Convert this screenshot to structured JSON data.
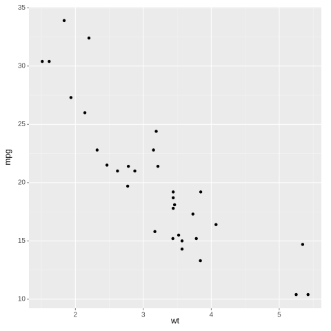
{
  "chart_data": {
    "type": "scatter",
    "x_label": "wt",
    "y_label": "mpg",
    "x": [
      2.62,
      2.875,
      2.32,
      3.215,
      3.44,
      3.46,
      3.57,
      3.19,
      3.15,
      3.44,
      3.44,
      4.07,
      3.73,
      3.78,
      5.25,
      5.424,
      5.345,
      2.2,
      1.615,
      1.835,
      2.465,
      3.52,
      3.435,
      3.84,
      3.845,
      1.935,
      2.14,
      1.513,
      3.17,
      2.77,
      3.57,
      2.78
    ],
    "values": [
      21.0,
      21.0,
      22.8,
      21.4,
      18.7,
      18.1,
      14.3,
      24.4,
      22.8,
      19.2,
      17.8,
      16.4,
      17.3,
      15.2,
      10.4,
      10.4,
      14.7,
      32.4,
      30.4,
      33.9,
      21.5,
      15.5,
      15.2,
      13.3,
      19.2,
      27.3,
      26.0,
      30.4,
      15.8,
      19.7,
      15.0,
      21.4
    ],
    "color": "#000000",
    "xlim": [
      1.317,
      5.62
    ],
    "ylim": [
      9.225,
      35.075
    ],
    "xticks": [
      2,
      3,
      4,
      5
    ],
    "yticks": [
      10,
      15,
      20,
      25,
      30,
      35
    ],
    "grid": true,
    "minor_grid": true
  }
}
